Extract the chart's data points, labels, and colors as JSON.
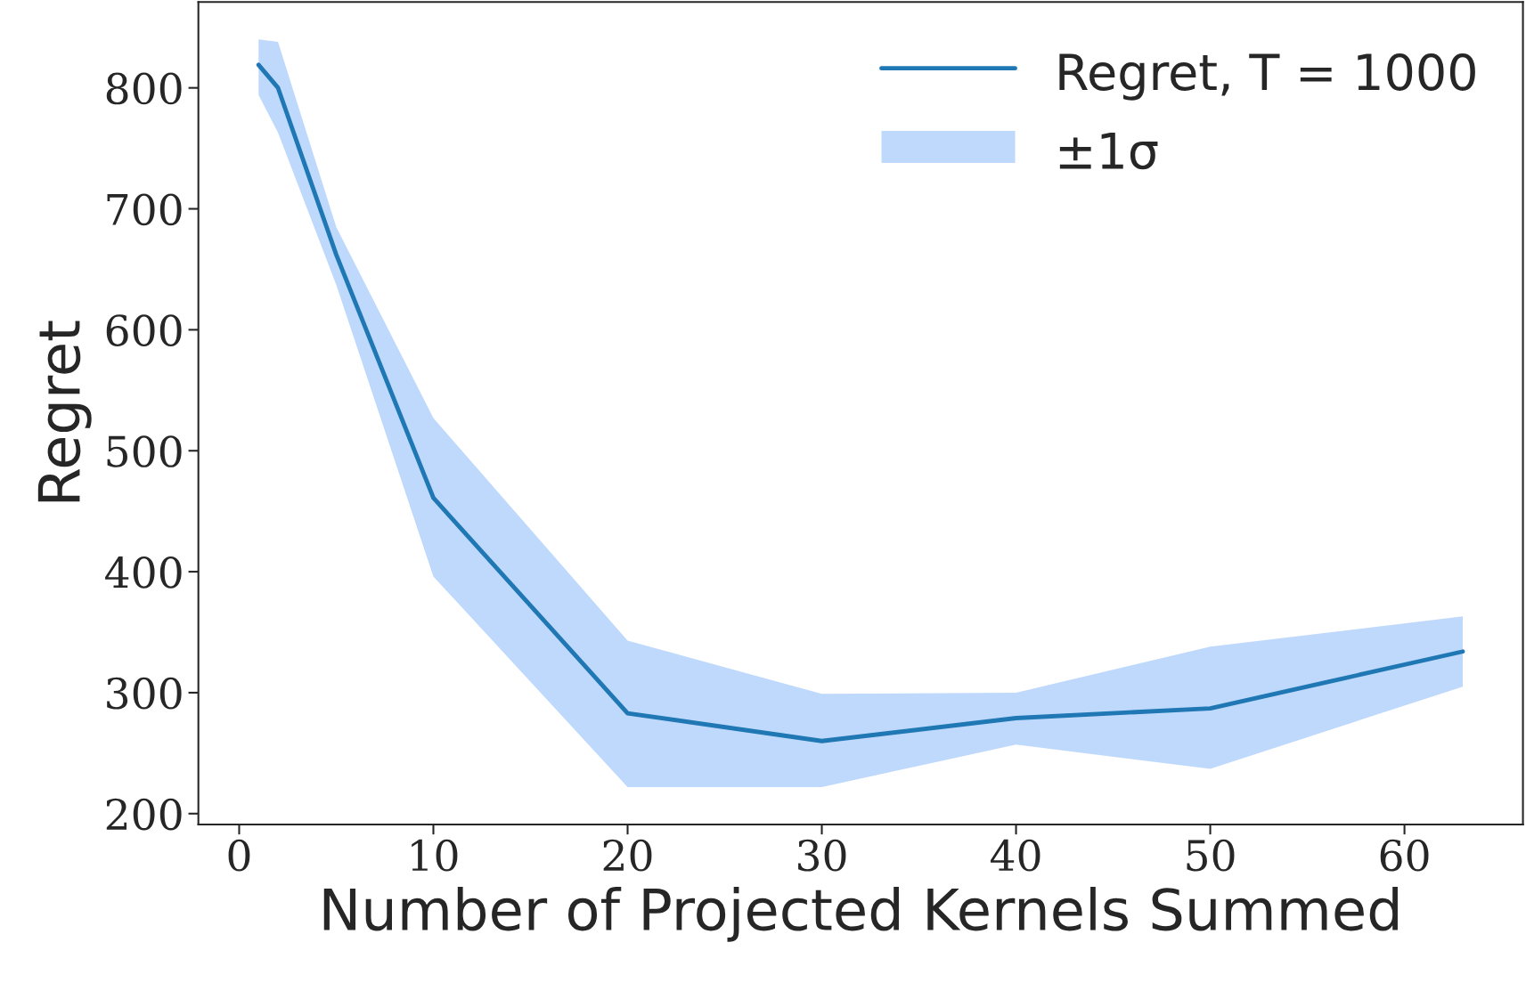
{
  "chart_data": {
    "type": "line",
    "xlabel": "Number of Projected Kernels Summed",
    "ylabel": "Regret",
    "x": [
      1,
      2,
      5,
      10,
      20,
      30,
      40,
      50,
      63
    ],
    "series": [
      {
        "name": "Regret, T = 1000",
        "color": "#1f77b4",
        "values": [
          819,
          800,
          662,
          461,
          283,
          260,
          279,
          287,
          334
        ],
        "lower": [
          794,
          763,
          637,
          396,
          222,
          222,
          257,
          237,
          305
        ],
        "upper": [
          840,
          838,
          685,
          527,
          343,
          299,
          300,
          338,
          363
        ]
      }
    ],
    "annotations": [
      "±1σ"
    ],
    "xlim": [
      -2.1,
      66.1
    ],
    "ylim": [
      191,
      871
    ],
    "xticks": [
      0,
      10,
      20,
      30,
      40,
      50,
      60
    ],
    "yticks": [
      200,
      300,
      400,
      500,
      600,
      700,
      800
    ],
    "legend": "top right",
    "grid": false
  }
}
